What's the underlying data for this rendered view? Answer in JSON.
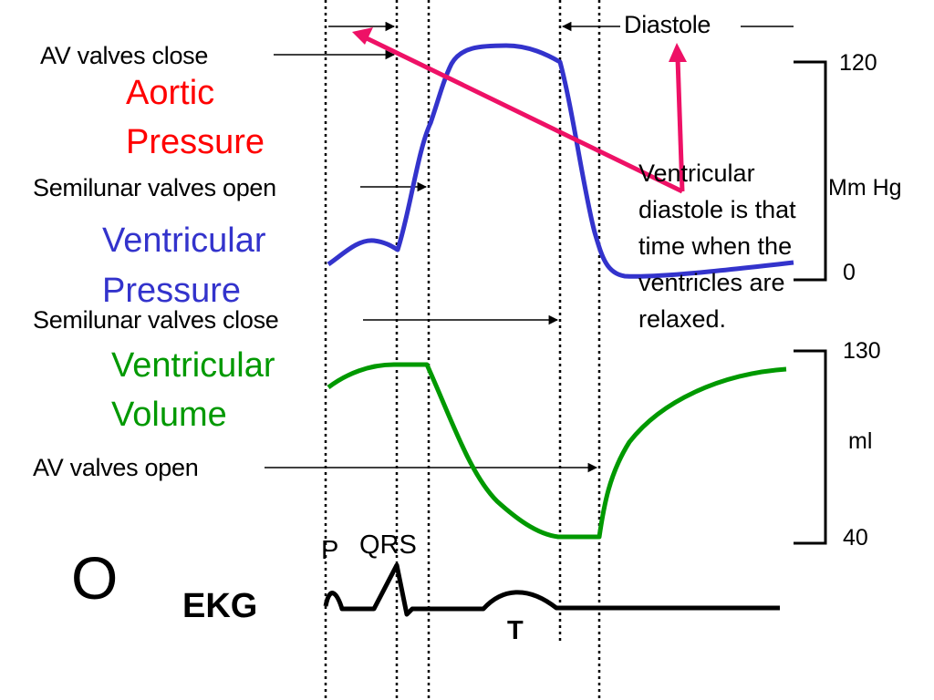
{
  "labels": {
    "av_valves_close": "AV valves close",
    "semilunar_valves_open": "Semilunar valves open",
    "semilunar_valves_close": "Semilunar valves close",
    "av_valves_open": "AV valves open",
    "diastole": "Diastole",
    "aortic_pressure_line1": "Aortic",
    "aortic_pressure_line2": "Pressure",
    "ventricular_pressure_line1": "Ventricular",
    "ventricular_pressure_line2": "Pressure",
    "ventricular_volume_line1": "Ventricular",
    "ventricular_volume_line2": "Volume",
    "ekg": "EKG",
    "big_o": "O",
    "p_wave": "P",
    "qrs": "QRS",
    "t_wave": "T",
    "note": "Ventricular diastole is that time when the ventricles are relaxed."
  },
  "pressure_scale": {
    "max": "120",
    "min": "0",
    "unit": "Mm Hg"
  },
  "volume_scale": {
    "max": "130",
    "min": "40",
    "unit": "ml"
  },
  "colors": {
    "aortic_label": "#ff0000",
    "ventricular_pressure": "#3333cc",
    "ventricular_volume": "#009900",
    "arrow_highlight": "#ee1166",
    "ink": "#000000"
  }
}
